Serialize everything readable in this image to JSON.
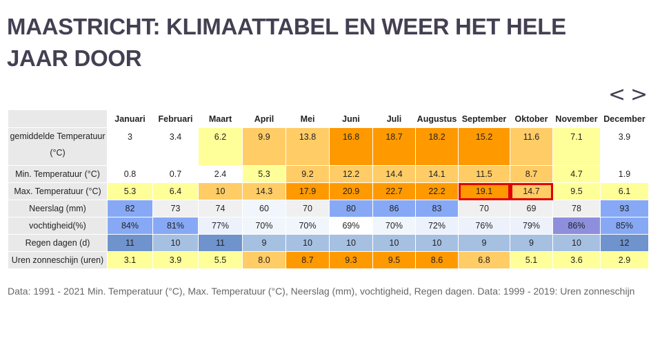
{
  "page": {
    "title": "MAASTRICHT: KLIMAATTABEL EN WEER HET HELE JAAR DOOR",
    "nav_prev": "<",
    "nav_next": ">",
    "footer": "Data: 1991 - 2021 Min. Temperatuur (°C), Max. Temperatuur (°C), Neerslag (mm), vochtigheid, Regen dagen. Data: 1999 - 2019: Uren zonneschijn"
  },
  "chart_data": {
    "type": "table",
    "columns": [
      "Januari",
      "Februari",
      "Maart",
      "April",
      "Mei",
      "Juni",
      "Juli",
      "Augustus",
      "September",
      "Oktober",
      "November",
      "December"
    ],
    "rows": [
      {
        "label": "gemiddelde Temperatuur (°C)",
        "values": [
          "3",
          "3.4",
          "6.2",
          "9.9",
          "13.8",
          "16.8",
          "18.7",
          "18.2",
          "15.2",
          "11.6",
          "7.1",
          "3.9"
        ],
        "colors": [
          "#ffffff",
          "#ffffff",
          "#ffff99",
          "#ffcc66",
          "#ffcc66",
          "#ff9900",
          "#ff9900",
          "#ff9900",
          "#ff9900",
          "#ffcc66",
          "#ffff99",
          "#ffffff"
        ]
      },
      {
        "label": "Min. Temperatuur (°C)",
        "values": [
          "0.8",
          "0.7",
          "2.4",
          "5.3",
          "9.2",
          "12.2",
          "14.4",
          "14.1",
          "11.5",
          "8.7",
          "4.7",
          "1.9"
        ],
        "colors": [
          "#ffffff",
          "#ffffff",
          "#ffffff",
          "#ffff99",
          "#ffcc66",
          "#ffcc66",
          "#ffcc66",
          "#ffcc66",
          "#ffcc66",
          "#ffcc66",
          "#ffff99",
          "#ffffff"
        ]
      },
      {
        "label": "Max. Temperatuur (°C)",
        "values": [
          "5.3",
          "6.4",
          "10",
          "14.3",
          "17.9",
          "20.9",
          "22.7",
          "22.2",
          "19.1",
          "14.7",
          "9.5",
          "6.1"
        ],
        "colors": [
          "#ffff99",
          "#ffff99",
          "#ffcc66",
          "#ffcc66",
          "#ff9900",
          "#ff9900",
          "#ff9900",
          "#ff9900",
          "#ff9900",
          "#ffcc66",
          "#ffff99",
          "#ffff99"
        ],
        "highlighted": [
          8,
          9
        ]
      },
      {
        "label": "Neerslag (mm)",
        "values": [
          "82",
          "73",
          "74",
          "60",
          "70",
          "80",
          "86",
          "83",
          "70",
          "69",
          "78",
          "93"
        ],
        "colors": [
          "#87a9f5",
          "#f0f0f0",
          "#f0f0f0",
          "#f0f6fc",
          "#f0f0f0",
          "#87a9f5",
          "#87a9f5",
          "#87a9f5",
          "#f0f0f0",
          "#f0f0f0",
          "#f0f0f0",
          "#87a9f5"
        ]
      },
      {
        "label": "vochtigheid(%)",
        "values": [
          "84%",
          "81%",
          "77%",
          "70%",
          "70%",
          "69%",
          "70%",
          "72%",
          "76%",
          "79%",
          "86%",
          "85%"
        ],
        "colors": [
          "#87a9f5",
          "#87a9f5",
          "#ecf1fb",
          "#f0f6fc",
          "#f0f6fc",
          "#ffffff",
          "#f0f6fc",
          "#ecf1fb",
          "#ecf1fb",
          "#ecf1fb",
          "#8e8fdc",
          "#87a9f5"
        ]
      },
      {
        "label": "Regen dagen (d)",
        "values": [
          "11",
          "10",
          "11",
          "9",
          "10",
          "10",
          "10",
          "10",
          "9",
          "9",
          "10",
          "12"
        ],
        "colors": [
          "#6f93cc",
          "#a6c0e2",
          "#6f93cc",
          "#a6c0e2",
          "#a6c0e2",
          "#a6c0e2",
          "#a6c0e2",
          "#a6c0e2",
          "#a6c0e2",
          "#a6c0e2",
          "#a6c0e2",
          "#6f93cc"
        ]
      },
      {
        "label": "Uren zonneschijn (uren)",
        "values": [
          "3.1",
          "3.9",
          "5.5",
          "8.0",
          "8.7",
          "9.3",
          "9.5",
          "8.6",
          "6.8",
          "5.1",
          "3.6",
          "2.9"
        ],
        "colors": [
          "#ffff99",
          "#ffff99",
          "#ffff99",
          "#ffcc66",
          "#ff9900",
          "#ff9900",
          "#ff9900",
          "#ff9900",
          "#ffcc66",
          "#ffff99",
          "#ffff99",
          "#ffff99"
        ]
      }
    ]
  }
}
